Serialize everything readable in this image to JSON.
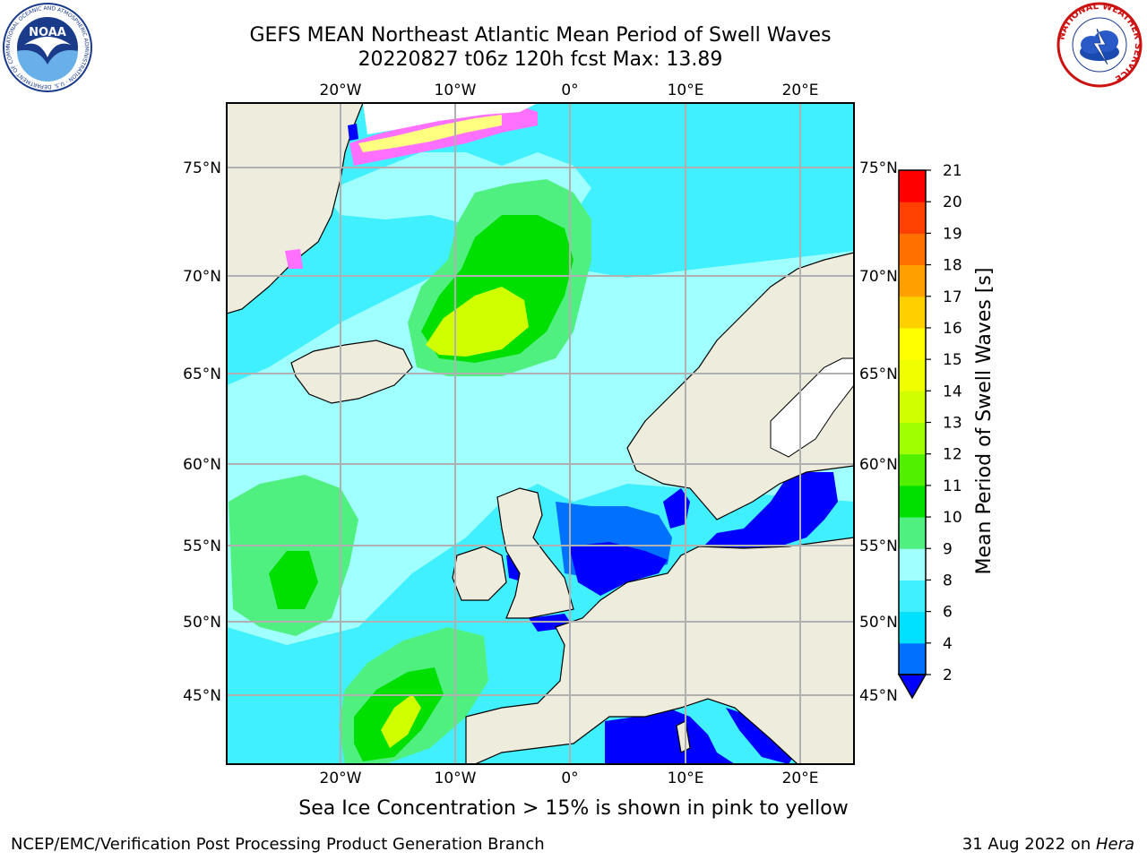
{
  "title": {
    "line1": "GEFS MEAN Northeast Atlantic Mean Period of Swell Waves",
    "line2": "20220827 t06z 120h fcst   Max: 13.89"
  },
  "caption": "Sea Ice Concentration > 15% is shown in pink to yellow",
  "footer": {
    "left": "NCEP/EMC/Verification Post Processing Product Generation Branch",
    "right_prefix": "31 Aug 2022 on ",
    "right_machine": "Hera"
  },
  "logos": {
    "left": {
      "icon": "noaa-logo",
      "text": "NOAA",
      "ring_text": "NATIONAL OCEANIC AND ATMOSPHERIC ADMINISTRATION · U.S. DEPARTMENT OF COMMERCE"
    },
    "right": {
      "icon": "nws-logo",
      "ring_text": "NATIONAL WEATHER SERVICE"
    }
  },
  "axes": {
    "lon_ticks": [
      "20°W",
      "10°W",
      "0°",
      "10°E",
      "20°E"
    ],
    "lat_ticks": [
      "75°N",
      "70°N",
      "65°N",
      "60°N",
      "55°N",
      "50°N",
      "45°N"
    ],
    "grid": true
  },
  "colorbar": {
    "label": "Mean Period of Swell Waves [s]",
    "ticks": [
      "2",
      "4",
      "6",
      "8",
      "9",
      "10",
      "11",
      "12",
      "13",
      "14",
      "15",
      "16",
      "17",
      "18",
      "19",
      "20",
      "21"
    ],
    "colors": [
      "#0070ff",
      "#00e0ff",
      "#40f0ff",
      "#a0ffff",
      "#50f080",
      "#00e000",
      "#50f000",
      "#a0ff00",
      "#d0ff00",
      "#f0ff00",
      "#ffff00",
      "#ffd000",
      "#ffa000",
      "#ff7000",
      "#ff4000",
      "#ff0000"
    ],
    "under_color": "#0000ff",
    "extend": "min"
  },
  "colors": {
    "land": "#eeecdc",
    "ocean_main": "#40f0ff",
    "ocean_light": "#a0ffff",
    "swell_mid": "#50f080",
    "swell_high": "#00e000",
    "swell_peak": "#d0ff00",
    "low_period": "#0070ff",
    "lowest": "#0000ff",
    "ice_pink": "#ff70ff",
    "ice_yellow": "#ffff80"
  }
}
